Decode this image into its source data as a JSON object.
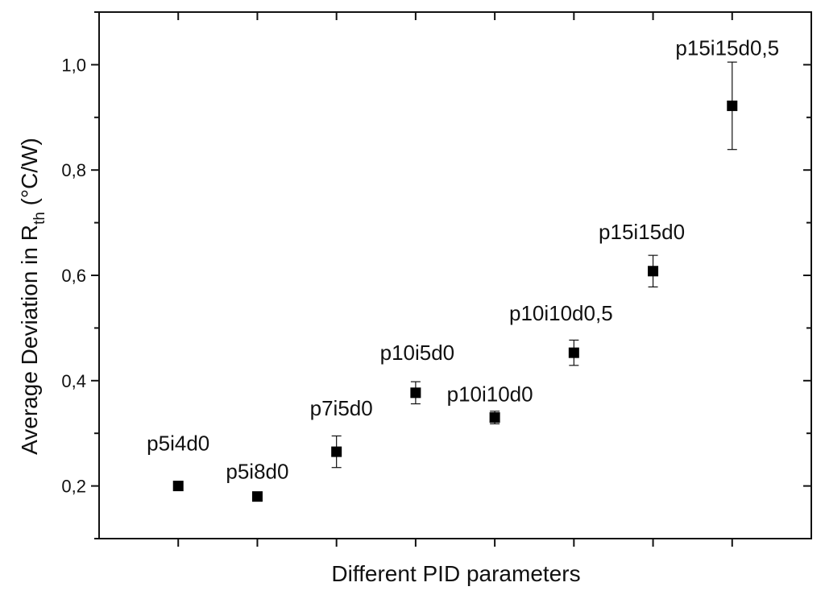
{
  "chart_data": {
    "type": "scatter",
    "xlabel": "Different PID parameters",
    "ylabel": {
      "prefix": "Average Deviation in R",
      "subscript": "th",
      "suffix": " (°C/W)"
    },
    "ylim": [
      0.1,
      1.1
    ],
    "xlim": [
      0,
      9
    ],
    "yticks": [
      {
        "value": 0.2,
        "label": "0,2"
      },
      {
        "value": 0.4,
        "label": "0,4"
      },
      {
        "value": 0.6,
        "label": "0,6"
      },
      {
        "value": 0.8,
        "label": "0,8"
      },
      {
        "value": 1.0,
        "label": "1,0"
      }
    ],
    "yminor": [
      0.1,
      0.3,
      0.5,
      0.7,
      0.9,
      1.1
    ],
    "xticks": [
      1,
      2,
      3,
      4,
      5,
      6,
      7,
      8
    ],
    "grid": false,
    "legend": "none",
    "marker_color": "#000000",
    "points": [
      {
        "x": 1,
        "y": 0.2,
        "err": 0.008,
        "label": "p5i4d0"
      },
      {
        "x": 2,
        "y": 0.18,
        "err": 0.007,
        "label": "p5i8d0"
      },
      {
        "x": 3,
        "y": 0.265,
        "err": 0.03,
        "label": "p7i5d0"
      },
      {
        "x": 4,
        "y": 0.377,
        "err": 0.021,
        "label": "p10i5d0"
      },
      {
        "x": 5,
        "y": 0.33,
        "err": 0.012,
        "label": "p10i10d0"
      },
      {
        "x": 6,
        "y": 0.453,
        "err": 0.024,
        "label": "p10i10d0,5"
      },
      {
        "x": 7,
        "y": 0.608,
        "err": 0.03,
        "label": "p15i15d0"
      },
      {
        "x": 8,
        "y": 0.922,
        "err": 0.083,
        "label": "p15i15d0,5"
      }
    ]
  }
}
